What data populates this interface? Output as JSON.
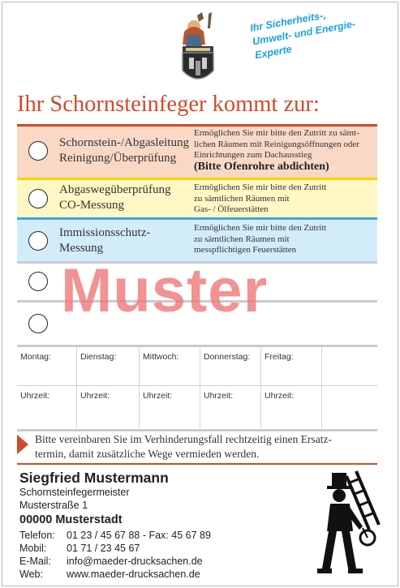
{
  "tagline": [
    "Ihr Sicherheits-,",
    "Umwelt- und Energie-",
    "Experte"
  ],
  "headline": "Ihr Schornsteinfeger kommt zur:",
  "services": [
    {
      "title": [
        "Schornstein-/Abgasleitung",
        "Reinigung/Überprüfung"
      ],
      "note": [
        "Ermöglichen Sie mir bitte den Zutritt zu sämt-",
        "lichen Räumen mit Reinigungsöffnungen oder",
        "Einrichtungen zum Dachausstieg"
      ],
      "note_bold": "(Bitte Ofenrohre abdichten)",
      "color": "#f9d9c6",
      "bar_color": "#d4472a"
    },
    {
      "title": [
        "Abgaswegüberprüfung",
        "CO-Messung"
      ],
      "note": [
        "Ermöglichen Sie mir bitte den Zutritt",
        "zu sämtlichen Räumen mit",
        "Gas- / Ölfeuerstätten"
      ],
      "color": "#fff7c4",
      "bar_color": "#f2d800"
    },
    {
      "title": [
        "Immissionsschutz-",
        "Messung"
      ],
      "note": [
        "Ermöglichen Sie mir bitte den Zutritt",
        "zu sämtlichen Räumen mit",
        "messpflichtigen Feuerstätten"
      ],
      "color": "#d3ecfa",
      "bar_color": "#43a5db"
    }
  ],
  "watermark": "Muster",
  "schedule": {
    "days": [
      "Montag:",
      "Dienstag:",
      "Mittwoch:",
      "Donnerstag:",
      "Freitag:"
    ],
    "time_label": "Uhrzeit:"
  },
  "notice": [
    "Bitte vereinbaren Sie im Verhinderungsfall rechtzeitig einen Ersatz-",
    "termin, damit zusätzliche Wege vermieden werden."
  ],
  "contact": {
    "name": "Siegfried Mustermann",
    "title": "Schornsteinfegermeister",
    "street": "Musterstraße 1",
    "city": "00000 Musterstadt",
    "phone_label": "Telefon:",
    "phone": "01 23 / 45 67 88 - Fax:  45 67 89",
    "mobile_label": "Mobil:",
    "mobile": "01 71 / 23 45 67",
    "email_label": "E-Mail:",
    "email": "info@maeder-drucksachen.de",
    "web_label": "Web:",
    "web": "www.maeder-drucksachen.de"
  },
  "colors": {
    "accent": "#d14a2a",
    "blue": "#1aa1dc"
  },
  "icons": [
    "guild-crest-icon",
    "chimney-sweep-icon",
    "arrow-right-icon"
  ]
}
